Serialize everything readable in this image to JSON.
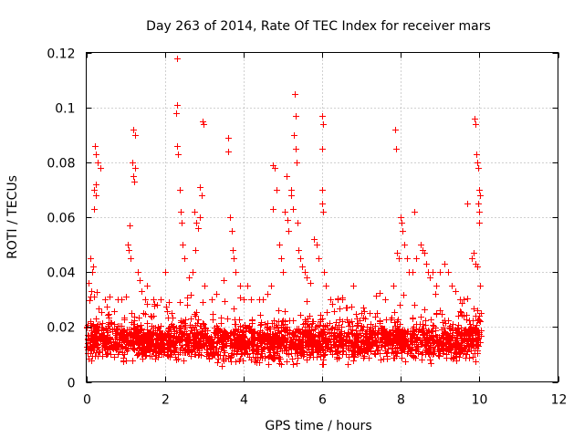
{
  "chart_data": {
    "type": "scatter",
    "title": "Day 263 of 2014, Rate Of TEC Index for receiver mars",
    "xlabel": "GPS time / hours",
    "ylabel": "ROTI / TECUs",
    "xlim": [
      0,
      12
    ],
    "ylim": [
      0,
      0.12
    ],
    "x_ticks": [
      0,
      2,
      4,
      6,
      8,
      10,
      12
    ],
    "x_tick_labels": [
      "0",
      "2",
      "4",
      "6",
      "8",
      "10",
      "12"
    ],
    "y_ticks": [
      0,
      0.02,
      0.04,
      0.06,
      0.08,
      0.1,
      0.12
    ],
    "y_tick_labels": [
      "0",
      "0.02",
      "0.04",
      "0.06",
      "0.08",
      "0.1",
      "0.12"
    ],
    "grid": true,
    "marker": "plus",
    "series_color": "#ff0000",
    "series": [
      {
        "name": "ROTI",
        "x_range": [
          0,
          10.05
        ],
        "baseline_band": [
          0.005,
          0.025
        ],
        "points": [
          [
            0.22,
            0.086
          ],
          [
            0.25,
            0.083
          ],
          [
            0.3,
            0.08
          ],
          [
            0.35,
            0.078
          ],
          [
            0.2,
            0.07
          ],
          [
            0.24,
            0.068
          ],
          [
            0.2,
            0.063
          ],
          [
            0.25,
            0.072
          ],
          [
            0.1,
            0.045
          ],
          [
            0.15,
            0.04
          ],
          [
            0.05,
            0.036
          ],
          [
            0.18,
            0.042
          ],
          [
            0.12,
            0.033
          ],
          [
            0.8,
            0.03
          ],
          [
            0.9,
            0.03
          ],
          [
            1.0,
            0.031
          ],
          [
            1.05,
            0.05
          ],
          [
            1.07,
            0.048
          ],
          [
            1.1,
            0.057
          ],
          [
            1.12,
            0.045
          ],
          [
            1.18,
            0.08
          ],
          [
            1.2,
            0.075
          ],
          [
            1.22,
            0.073
          ],
          [
            1.25,
            0.078
          ],
          [
            1.2,
            0.092
          ],
          [
            1.25,
            0.09
          ],
          [
            1.3,
            0.04
          ],
          [
            1.35,
            0.037
          ],
          [
            1.4,
            0.033
          ],
          [
            1.5,
            0.03
          ],
          [
            1.55,
            0.035
          ],
          [
            1.7,
            0.03
          ],
          [
            1.8,
            0.028
          ],
          [
            2.3,
            0.118
          ],
          [
            2.3,
            0.101
          ],
          [
            2.28,
            0.098
          ],
          [
            2.32,
            0.086
          ],
          [
            2.33,
            0.083
          ],
          [
            2.38,
            0.07
          ],
          [
            2.4,
            0.062
          ],
          [
            2.42,
            0.058
          ],
          [
            2.45,
            0.05
          ],
          [
            2.5,
            0.045
          ],
          [
            2.6,
            0.038
          ],
          [
            2.7,
            0.04
          ],
          [
            2.75,
            0.062
          ],
          [
            2.8,
            0.058
          ],
          [
            2.85,
            0.056
          ],
          [
            2.9,
            0.06
          ],
          [
            2.95,
            0.095
          ],
          [
            2.98,
            0.094
          ],
          [
            2.9,
            0.071
          ],
          [
            2.93,
            0.068
          ],
          [
            2.78,
            0.048
          ],
          [
            3.0,
            0.035
          ],
          [
            3.2,
            0.03
          ],
          [
            3.3,
            0.032
          ],
          [
            3.5,
            0.037
          ],
          [
            3.6,
            0.089
          ],
          [
            3.62,
            0.084
          ],
          [
            3.65,
            0.06
          ],
          [
            3.7,
            0.055
          ],
          [
            3.72,
            0.048
          ],
          [
            3.75,
            0.045
          ],
          [
            3.8,
            0.04
          ],
          [
            3.9,
            0.035
          ],
          [
            4.0,
            0.03
          ],
          [
            4.1,
            0.035
          ],
          [
            4.2,
            0.03
          ],
          [
            4.4,
            0.03
          ],
          [
            4.5,
            0.03
          ],
          [
            4.6,
            0.032
          ],
          [
            4.7,
            0.035
          ],
          [
            4.75,
            0.079
          ],
          [
            4.8,
            0.078
          ],
          [
            4.75,
            0.063
          ],
          [
            4.85,
            0.07
          ],
          [
            4.9,
            0.05
          ],
          [
            4.95,
            0.045
          ],
          [
            5.0,
            0.04
          ],
          [
            5.05,
            0.062
          ],
          [
            5.1,
            0.075
          ],
          [
            5.12,
            0.059
          ],
          [
            5.15,
            0.055
          ],
          [
            5.2,
            0.07
          ],
          [
            5.22,
            0.068
          ],
          [
            5.25,
            0.063
          ],
          [
            5.28,
            0.09
          ],
          [
            5.3,
            0.105
          ],
          [
            5.32,
            0.097
          ],
          [
            5.33,
            0.085
          ],
          [
            5.35,
            0.08
          ],
          [
            5.38,
            0.058
          ],
          [
            5.4,
            0.048
          ],
          [
            5.45,
            0.045
          ],
          [
            5.5,
            0.042
          ],
          [
            5.55,
            0.04
          ],
          [
            5.6,
            0.038
          ],
          [
            5.7,
            0.036
          ],
          [
            5.8,
            0.052
          ],
          [
            5.85,
            0.05
          ],
          [
            5.9,
            0.045
          ],
          [
            6.0,
            0.097
          ],
          [
            6.02,
            0.094
          ],
          [
            6.0,
            0.085
          ],
          [
            6.0,
            0.07
          ],
          [
            6.0,
            0.065
          ],
          [
            6.02,
            0.062
          ],
          [
            6.05,
            0.04
          ],
          [
            6.1,
            0.035
          ],
          [
            6.2,
            0.03
          ],
          [
            6.4,
            0.03
          ],
          [
            6.6,
            0.027
          ],
          [
            6.8,
            0.035
          ],
          [
            7.0,
            0.025
          ],
          [
            7.2,
            0.025
          ],
          [
            7.4,
            0.025
          ],
          [
            7.6,
            0.03
          ],
          [
            7.8,
            0.035
          ],
          [
            7.85,
            0.092
          ],
          [
            7.88,
            0.085
          ],
          [
            7.9,
            0.047
          ],
          [
            7.95,
            0.045
          ],
          [
            8.0,
            0.06
          ],
          [
            8.02,
            0.058
          ],
          [
            8.05,
            0.055
          ],
          [
            8.1,
            0.05
          ],
          [
            8.15,
            0.045
          ],
          [
            8.2,
            0.04
          ],
          [
            8.3,
            0.04
          ],
          [
            8.35,
            0.062
          ],
          [
            8.4,
            0.045
          ],
          [
            8.5,
            0.05
          ],
          [
            8.55,
            0.048
          ],
          [
            8.6,
            0.047
          ],
          [
            8.65,
            0.043
          ],
          [
            8.7,
            0.04
          ],
          [
            8.75,
            0.038
          ],
          [
            8.8,
            0.04
          ],
          [
            8.9,
            0.035
          ],
          [
            9.0,
            0.04
          ],
          [
            9.1,
            0.043
          ],
          [
            9.2,
            0.04
          ],
          [
            9.3,
            0.035
          ],
          [
            9.4,
            0.033
          ],
          [
            9.5,
            0.03
          ],
          [
            9.6,
            0.03
          ],
          [
            9.7,
            0.065
          ],
          [
            9.8,
            0.045
          ],
          [
            9.85,
            0.047
          ],
          [
            9.9,
            0.043
          ],
          [
            9.95,
            0.042
          ],
          [
            9.88,
            0.096
          ],
          [
            9.9,
            0.094
          ],
          [
            9.92,
            0.083
          ],
          [
            9.95,
            0.08
          ],
          [
            9.97,
            0.078
          ],
          [
            10.0,
            0.07
          ],
          [
            10.02,
            0.068
          ],
          [
            9.98,
            0.065
          ],
          [
            10.0,
            0.062
          ],
          [
            10.0,
            0.058
          ],
          [
            10.02,
            0.035
          ],
          [
            10.03,
            0.025
          ],
          [
            10.0,
            0.024
          ],
          [
            0.6,
            0.031
          ],
          [
            2.0,
            0.04
          ],
          [
            6.5,
            0.03
          ],
          [
            7.1,
            0.023
          ],
          [
            1.9,
            0.03
          ]
        ]
      }
    ]
  }
}
